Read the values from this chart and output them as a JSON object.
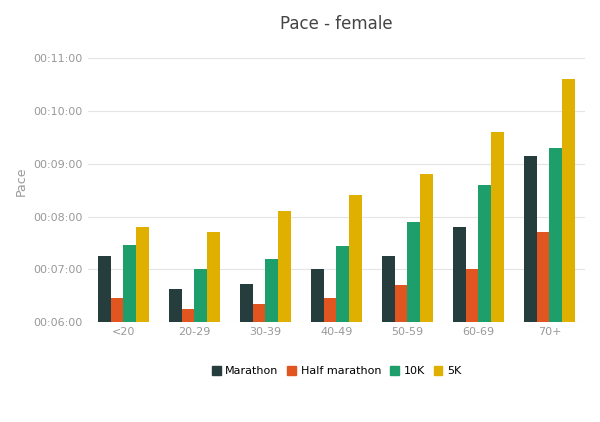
{
  "title": "Pace - female",
  "ylabel": "Pace",
  "categories": [
    "<20",
    "20-29",
    "30-39",
    "40-49",
    "50-59",
    "60-69",
    "70+"
  ],
  "series": {
    "Marathon": [
      435,
      398,
      404,
      420,
      435,
      468,
      549
    ],
    "Half marathon": [
      388,
      375,
      381,
      388,
      402,
      420,
      462
    ],
    "10K": [
      448,
      420,
      432,
      447,
      474,
      516,
      558
    ],
    "5K": [
      468,
      462,
      486,
      504,
      528,
      576,
      636
    ]
  },
  "colors": {
    "Marathon": "#253d3d",
    "Half marathon": "#e05520",
    "10K": "#1e9e6b",
    "5K": "#e0b000"
  },
  "ylim_seconds": [
    360,
    680
  ],
  "ytick_seconds": [
    360,
    420,
    480,
    540,
    600,
    660
  ],
  "ytick_labels": [
    "00:06:00",
    "00:07:00",
    "00:08:00",
    "00:09:00",
    "00:10:00",
    "00:11:00"
  ],
  "background_color": "#ffffff",
  "bar_width": 0.18,
  "legend_labels": [
    "Marathon",
    "Half marathon",
    "10K",
    "5K"
  ],
  "figsize": [
    6.0,
    4.22
  ],
  "dpi": 100
}
